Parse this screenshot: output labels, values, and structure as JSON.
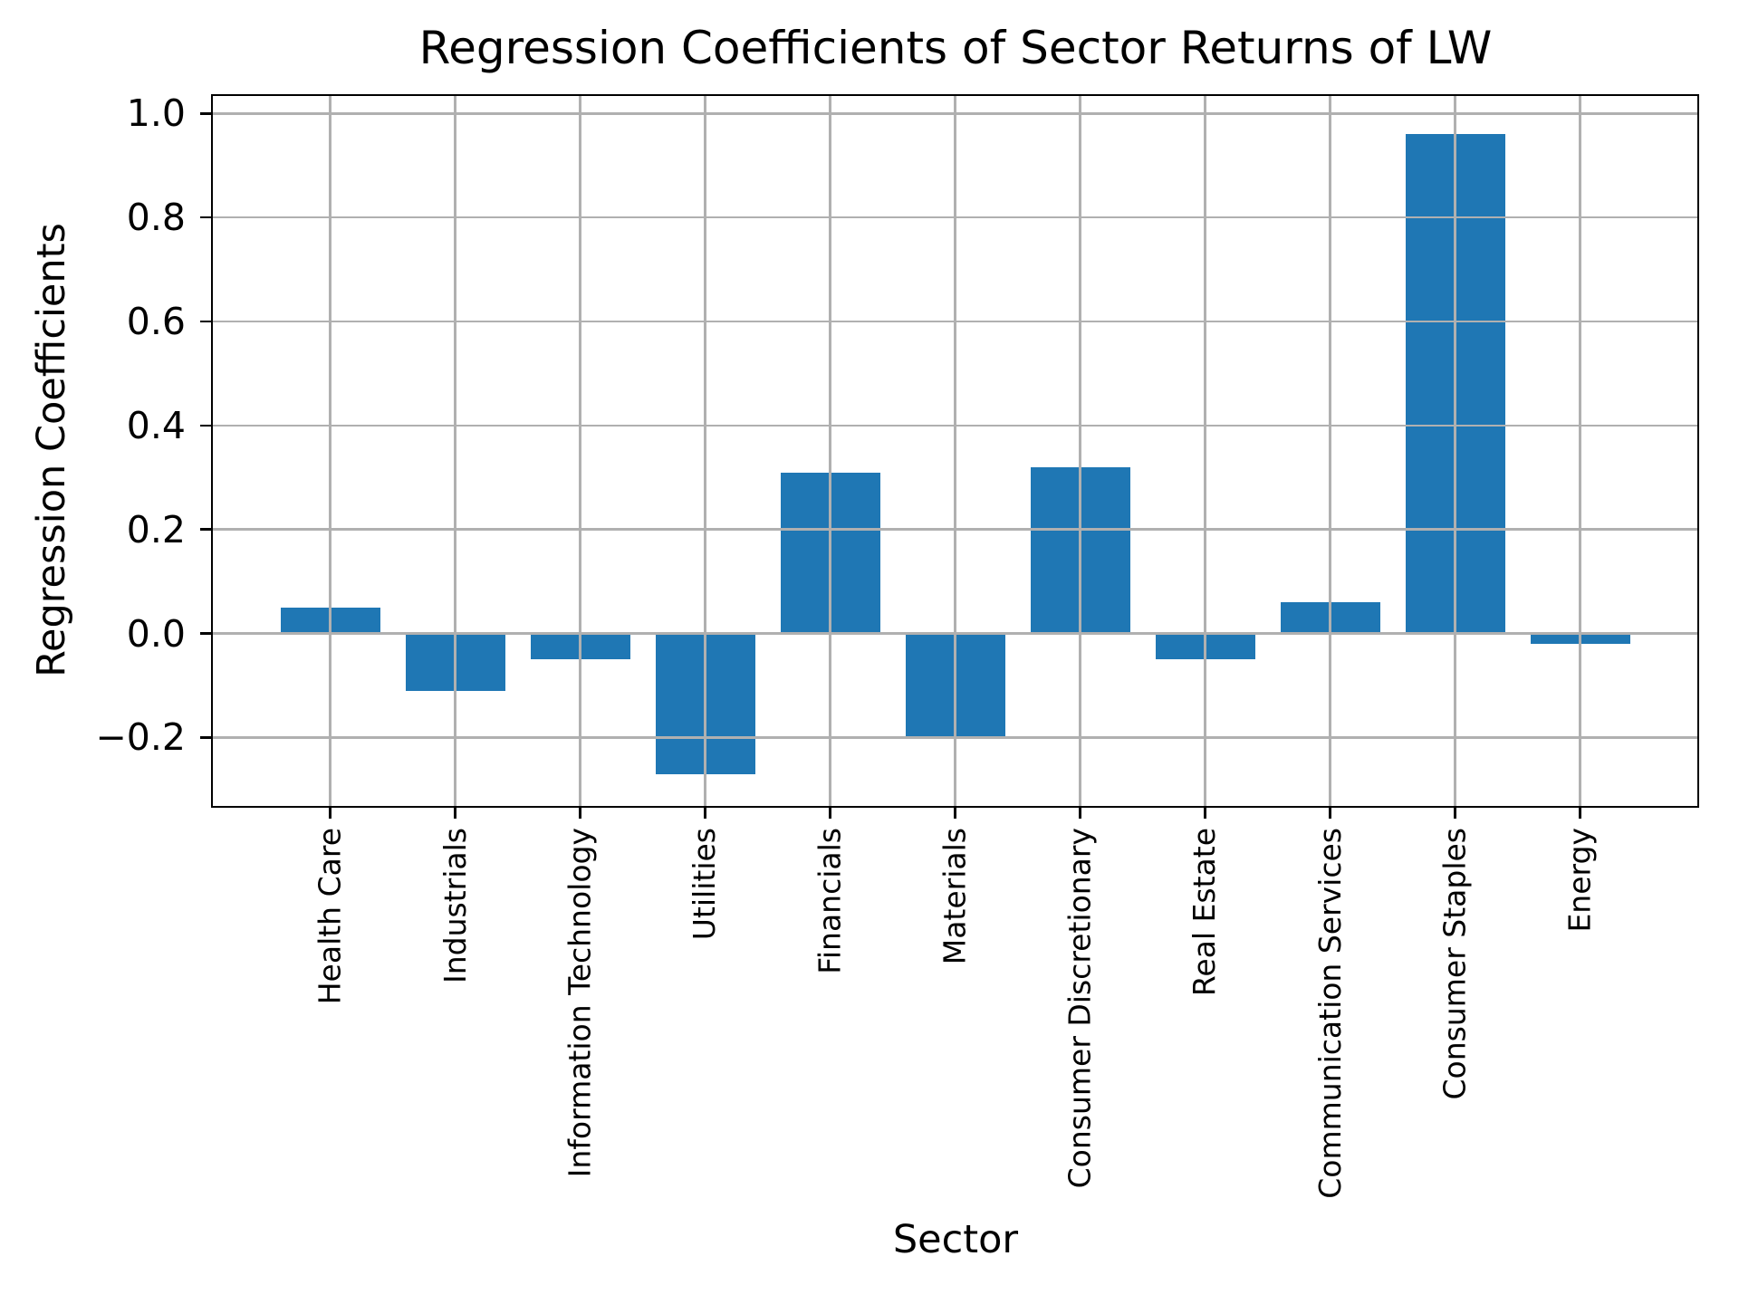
{
  "title": "Regression Coefficients of Sector Returns of LW",
  "chart_data": {
    "type": "bar",
    "title": "Regression Coefficients of Sector Returns of LW",
    "xlabel": "Sector",
    "ylabel": "Regression Coefficients",
    "categories": [
      "Health Care",
      "Industrials",
      "Information Technology",
      "Utilities",
      "Financials",
      "Materials",
      "Consumer Discretionary",
      "Real Estate",
      "Communication Services",
      "Consumer Staples",
      "Energy"
    ],
    "values": [
      0.05,
      -0.11,
      -0.05,
      -0.27,
      0.31,
      -0.2,
      0.32,
      -0.05,
      0.06,
      0.96,
      -0.02
    ],
    "ylim": [
      -0.335,
      1.037
    ],
    "yticks": [
      1.0,
      0.8,
      0.6,
      0.4,
      0.2,
      0.0,
      -0.2
    ],
    "ytick_labels": [
      "1.0",
      "0.8",
      "0.6",
      "0.4",
      "0.2",
      "0.0",
      "−0.2"
    ],
    "grid": true,
    "grid_over_bars": true,
    "legend": "none",
    "bar_color": "#1f77b4",
    "grid_color": "#b0b0b0",
    "spine_color": "#000000"
  }
}
